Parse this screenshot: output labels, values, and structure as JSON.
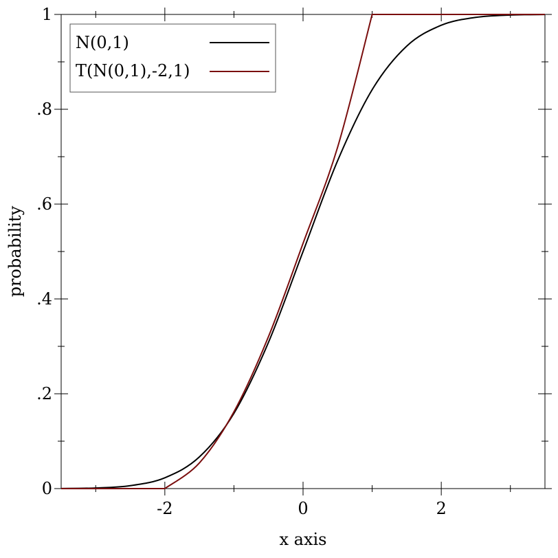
{
  "chart_data": {
    "type": "line",
    "title": "",
    "xlabel": "x axis",
    "ylabel": "probability",
    "xlim": [
      -3.5,
      3.5
    ],
    "ylim": [
      0,
      1
    ],
    "grid": false,
    "legend_position": "top-left",
    "x_ticks": [
      {
        "value": -2,
        "label": "-2"
      },
      {
        "value": 0,
        "label": "0"
      },
      {
        "value": 2,
        "label": "2"
      }
    ],
    "x_minor_ticks": [
      -3,
      -1,
      1,
      3
    ],
    "y_ticks": [
      {
        "value": 0,
        "label": "0"
      },
      {
        "value": 0.2,
        "label": ".2"
      },
      {
        "value": 0.4,
        "label": ".4"
      },
      {
        "value": 0.6,
        "label": ".6"
      },
      {
        "value": 0.8,
        "label": ".8"
      },
      {
        "value": 1,
        "label": "1"
      }
    ],
    "y_minor_ticks": [
      0.1,
      0.3,
      0.5,
      0.7,
      0.9
    ],
    "series": [
      {
        "name": "N(0,1)",
        "color": "#000000",
        "x": [
          -3.5,
          -3.0,
          -2.5,
          -2.0,
          -1.5,
          -1.0,
          -0.5,
          0.0,
          0.5,
          1.0,
          1.5,
          2.0,
          2.5,
          3.0,
          3.5
        ],
        "y": [
          0.0002,
          0.0013,
          0.0062,
          0.0228,
          0.0668,
          0.1587,
          0.3085,
          0.5,
          0.6915,
          0.8413,
          0.9332,
          0.9772,
          0.9938,
          0.9987,
          0.9998
        ]
      },
      {
        "name": "T(N(0,1),-2,1)",
        "color": "#7a0e0e",
        "x": [
          -3.5,
          -2.0,
          -1.5,
          -1.0,
          -0.5,
          0.0,
          0.5,
          1.0,
          3.5
        ],
        "y": [
          0.0,
          0.0,
          0.0541,
          0.162,
          0.3206,
          0.5172,
          0.7199,
          1.0,
          1.0
        ]
      }
    ]
  }
}
